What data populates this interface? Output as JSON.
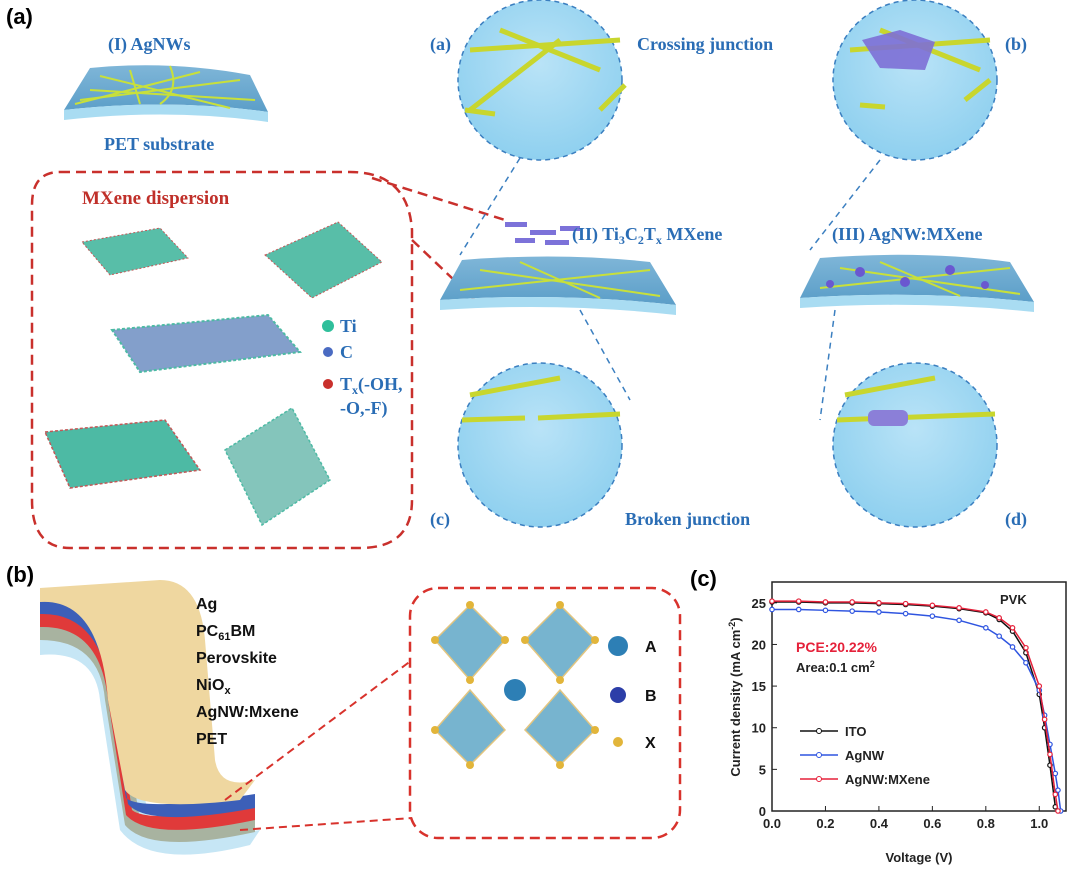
{
  "panel_a": {
    "label": "(a)",
    "agnws_title": "(I) AgNWs",
    "substrate": "PET substrate",
    "dispersion_title": "MXene dispersion",
    "legend": {
      "ti": "Ti",
      "c": "C",
      "tx_main": "T",
      "tx_sub": "x",
      "tx_rest": "(-OH,",
      "tx_rest2": "-O,-F)"
    },
    "mxene_title": {
      "prefix": "(II) Ti",
      "s1": "3",
      "c": "C",
      "s2": "2",
      "t": "T",
      "s3": "x",
      "suffix": " MXene"
    },
    "composite_title": "(III) AgNW:MXene",
    "inset_a": "(a)",
    "inset_b": "(b)",
    "inset_c": "(c)",
    "inset_d": "(d)",
    "crossing": "Crossing junction",
    "broken": "Broken junction"
  },
  "panel_b": {
    "label": "(b)",
    "layers": [
      {
        "main": "Ag"
      },
      {
        "main": "PC",
        "sub": "61",
        "rest": "BM"
      },
      {
        "main": "Perovskite"
      },
      {
        "main": "NiO",
        "sub": "x"
      },
      {
        "main": "AgNW:Mxene"
      },
      {
        "main": "PET"
      }
    ],
    "crystal_legend": [
      "A",
      "B",
      "X"
    ]
  },
  "chart_data": {
    "label": "(c)",
    "type": "line",
    "xlabel": "Voltage (V)",
    "ylabel": "Current density (mA cm",
    "ylabel_sup": "-2",
    "ylabel_end": ")",
    "xlim": [
      0,
      1.1
    ],
    "ylim": [
      0,
      27.5
    ],
    "xticks": [
      "0.0",
      "0.2",
      "0.4",
      "0.6",
      "0.8",
      "1.0"
    ],
    "yticks": [
      "0",
      "5",
      "10",
      "15",
      "20",
      "25"
    ],
    "annotation_tag": "PVK",
    "pce": "PCE:20.22%",
    "area": "Area:0.1 cm",
    "area_sup": "2",
    "legend_placement": "lower-left",
    "series": [
      {
        "name": "ITO",
        "color": "#111111",
        "x": [
          0,
          0.1,
          0.2,
          0.3,
          0.4,
          0.5,
          0.6,
          0.7,
          0.8,
          0.85,
          0.9,
          0.95,
          1.0,
          1.02,
          1.04,
          1.06
        ],
        "y": [
          25.1,
          25.1,
          25.0,
          25.0,
          24.9,
          24.8,
          24.6,
          24.3,
          23.8,
          23.0,
          21.6,
          19.0,
          14.0,
          10.0,
          5.5,
          0.5
        ]
      },
      {
        "name": "AgNW",
        "color": "#2f55e0",
        "x": [
          0,
          0.1,
          0.2,
          0.3,
          0.4,
          0.5,
          0.6,
          0.7,
          0.8,
          0.85,
          0.9,
          0.95,
          1.0,
          1.02,
          1.04,
          1.06,
          1.07,
          1.08
        ],
        "y": [
          24.2,
          24.2,
          24.1,
          24.0,
          23.9,
          23.7,
          23.4,
          22.9,
          22.0,
          21.0,
          19.7,
          17.8,
          14.5,
          11.5,
          8.0,
          4.5,
          2.5,
          0
        ]
      },
      {
        "name": "AgNW:MXene",
        "color": "#e5213a",
        "x": [
          0,
          0.1,
          0.2,
          0.3,
          0.4,
          0.5,
          0.6,
          0.7,
          0.8,
          0.85,
          0.9,
          0.95,
          1.0,
          1.02,
          1.04,
          1.06,
          1.07
        ],
        "y": [
          25.2,
          25.2,
          25.1,
          25.1,
          25.0,
          24.9,
          24.7,
          24.4,
          23.9,
          23.2,
          22.0,
          19.6,
          15.0,
          11.0,
          6.8,
          2.0,
          0
        ]
      }
    ]
  }
}
